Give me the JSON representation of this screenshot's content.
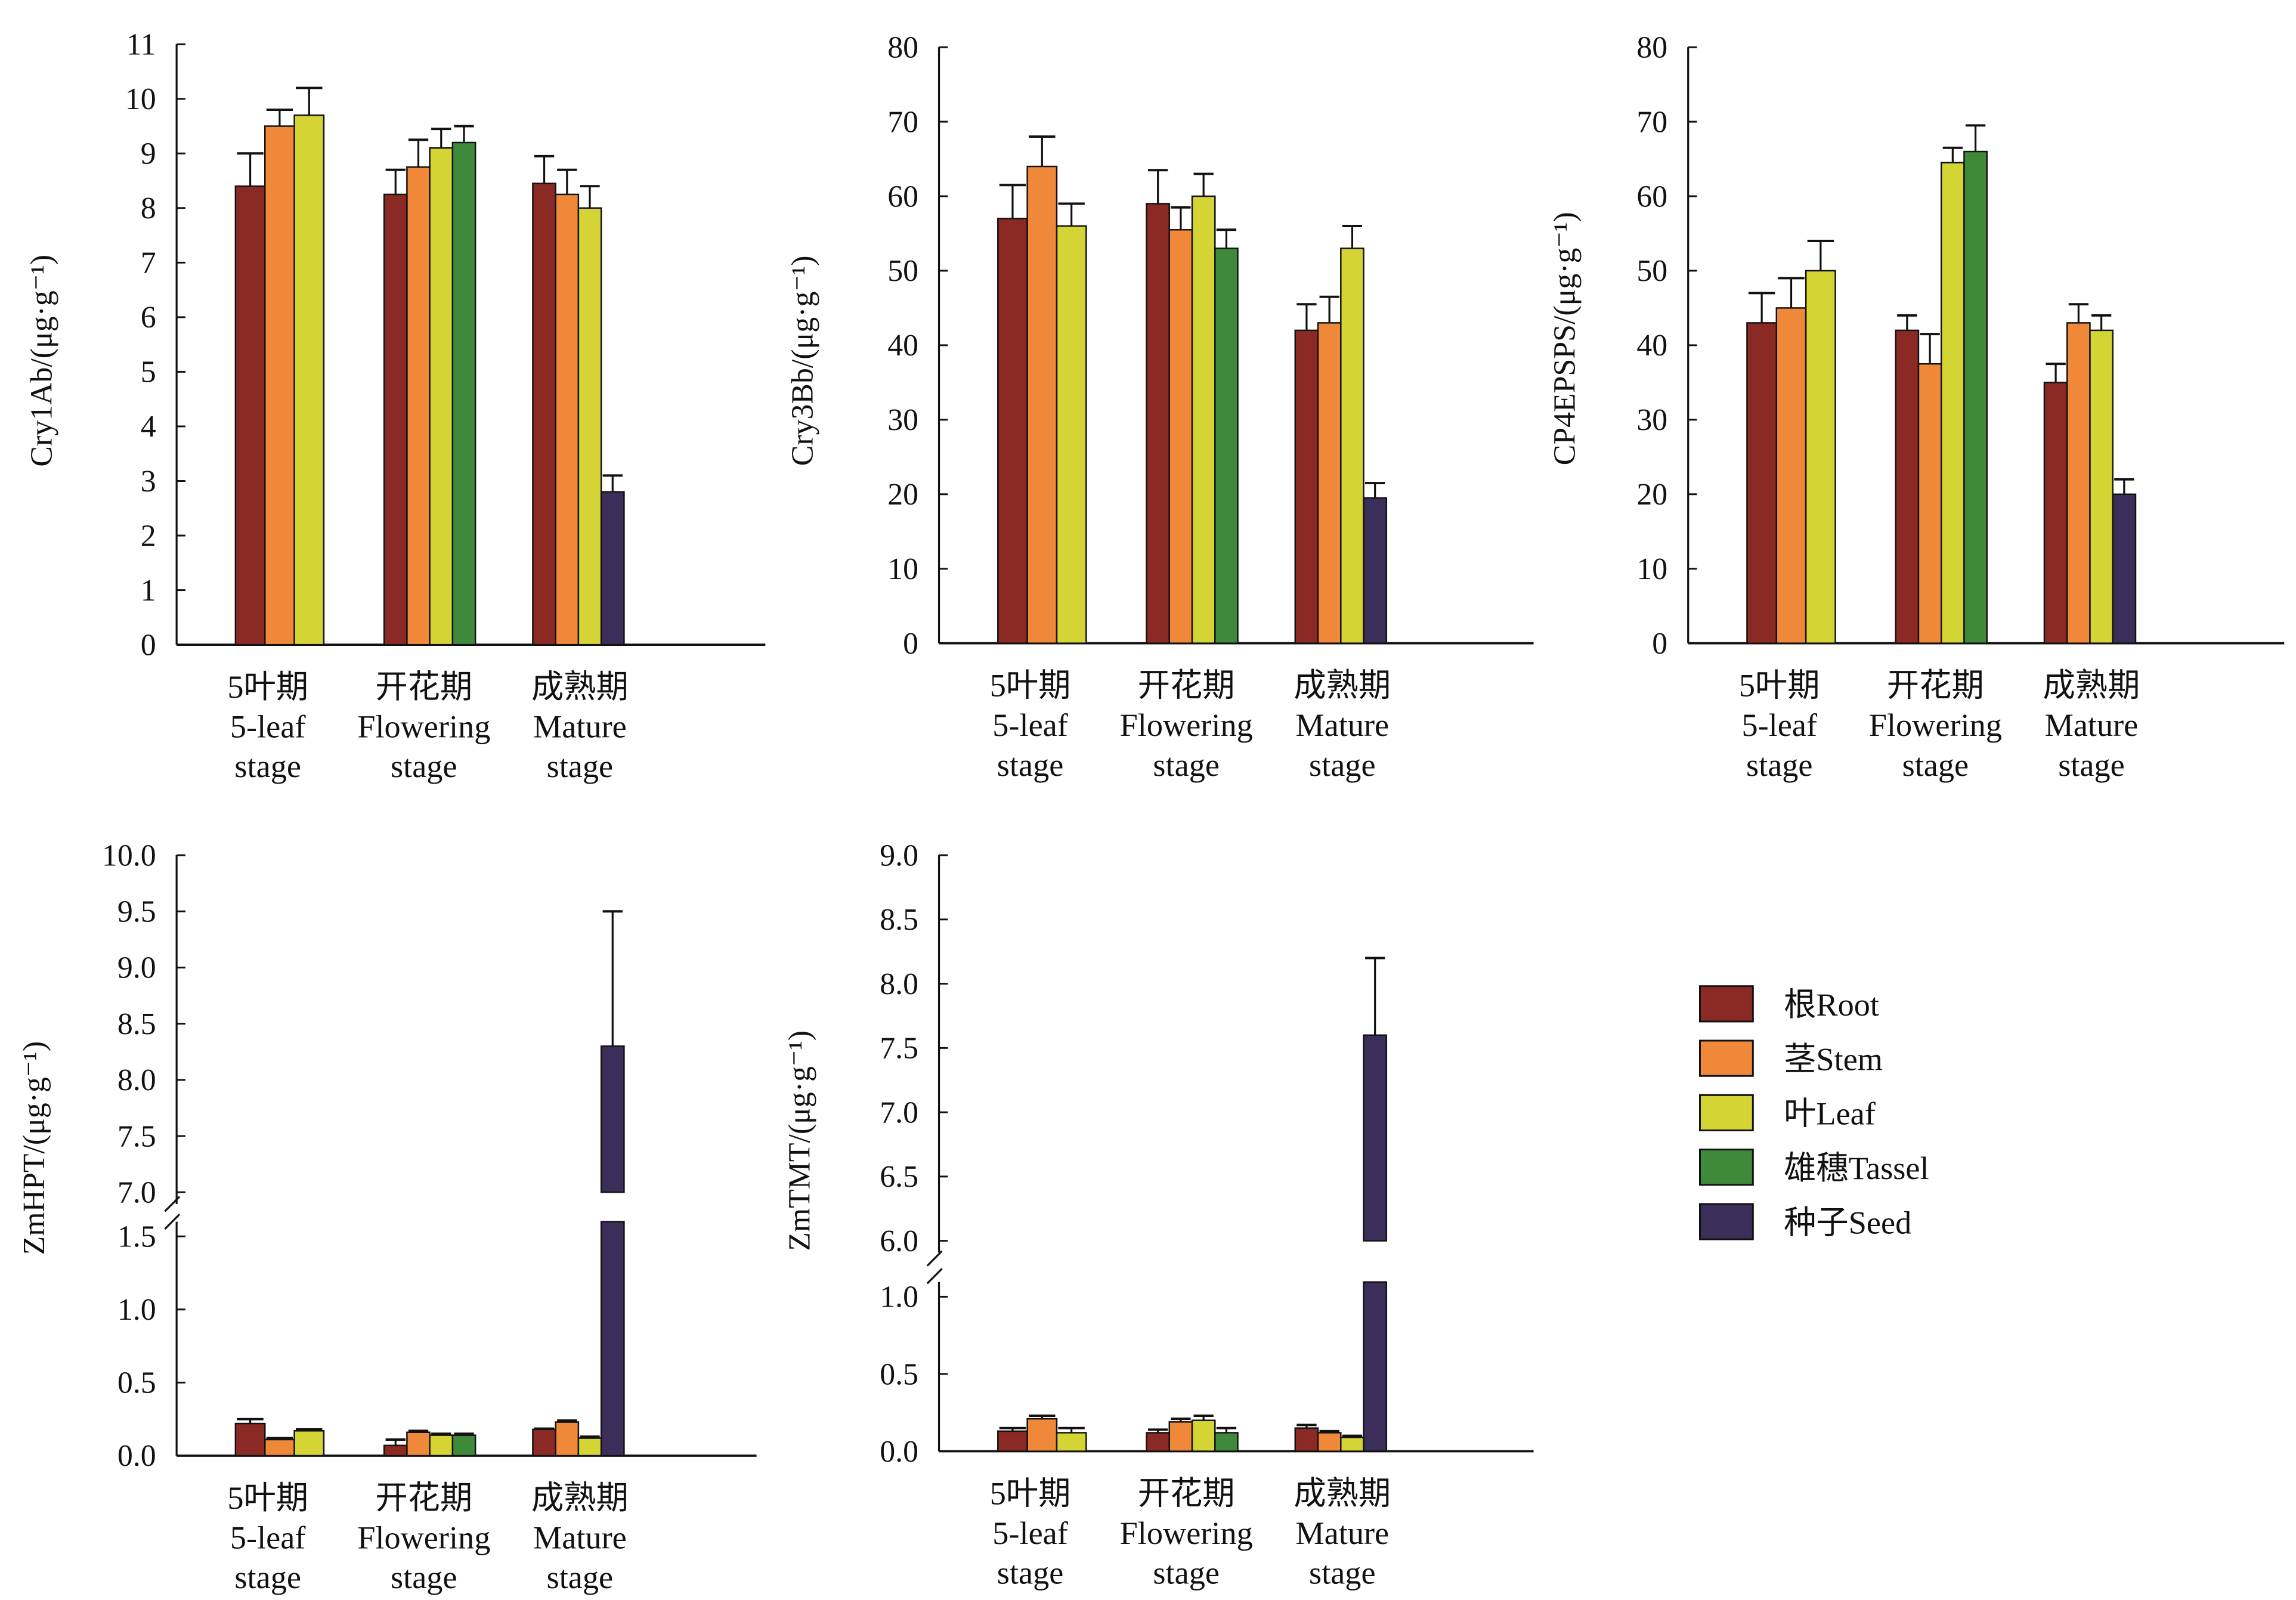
{
  "legend": [
    {
      "label": "根Root",
      "color": "#8B2A24"
    },
    {
      "label": "茎Stem",
      "color": "#F0883A"
    },
    {
      "label": "叶Leaf",
      "color": "#D4D435"
    },
    {
      "label": "雄穗Tassel",
      "color": "#3E8A3A"
    },
    {
      "label": "种子Seed",
      "color": "#3C2E5A"
    }
  ],
  "chart_data": [
    {
      "type": "bar",
      "ylabel": "Cry1Ab/(μg·g⁻¹)",
      "ylim": [
        0,
        11
      ],
      "yticks": [
        0,
        1,
        2,
        3,
        4,
        5,
        6,
        7,
        8,
        9,
        10,
        11
      ],
      "categories": [
        [
          "5叶期",
          "5-leaf",
          "stage"
        ],
        [
          "开花期",
          "Flowering",
          "stage"
        ],
        [
          "成熟期",
          "Mature",
          "stage"
        ]
      ],
      "groups": [
        [
          [
            "Root",
            8.4,
            0.6
          ],
          [
            "Stem",
            9.5,
            0.3
          ],
          [
            "Leaf",
            9.7,
            0.5
          ]
        ],
        [
          [
            "Root",
            8.25,
            0.45
          ],
          [
            "Stem",
            8.75,
            0.5
          ],
          [
            "Leaf",
            9.1,
            0.35
          ],
          [
            "Tassel",
            9.2,
            0.3
          ]
        ],
        [
          [
            "Root",
            8.45,
            0.5
          ],
          [
            "Stem",
            8.25,
            0.45
          ],
          [
            "Leaf",
            8.0,
            0.4
          ],
          [
            "Seed",
            2.8,
            0.3
          ]
        ]
      ]
    },
    {
      "type": "bar",
      "ylabel": "Cry3Bb/(μg·g⁻¹)",
      "ylim": [
        0,
        80
      ],
      "yticks": [
        0,
        10,
        20,
        30,
        40,
        50,
        60,
        70,
        80
      ],
      "categories": [
        [
          "5叶期",
          "5-leaf",
          "stage"
        ],
        [
          "开花期",
          "Flowering",
          "stage"
        ],
        [
          "成熟期",
          "Mature",
          "stage"
        ]
      ],
      "groups": [
        [
          [
            "Root",
            57,
            4.5
          ],
          [
            "Stem",
            64,
            4
          ],
          [
            "Leaf",
            56,
            3
          ]
        ],
        [
          [
            "Root",
            59,
            4.5
          ],
          [
            "Stem",
            55.5,
            3
          ],
          [
            "Leaf",
            60,
            3
          ],
          [
            "Tassel",
            53,
            2.5
          ]
        ],
        [
          [
            "Root",
            42,
            3.5
          ],
          [
            "Stem",
            43,
            3.5
          ],
          [
            "Leaf",
            53,
            3
          ],
          [
            "Seed",
            19.5,
            2
          ]
        ]
      ]
    },
    {
      "type": "bar",
      "ylabel": "CP4EPSPS/(μg·g⁻¹)",
      "ylim": [
        0,
        80
      ],
      "yticks": [
        0,
        10,
        20,
        30,
        40,
        50,
        60,
        70,
        80
      ],
      "categories": [
        [
          "5叶期",
          "5-leaf",
          "stage"
        ],
        [
          "开花期",
          "Flowering",
          "stage"
        ],
        [
          "成熟期",
          "Mature",
          "stage"
        ]
      ],
      "groups": [
        [
          [
            "Root",
            43,
            4
          ],
          [
            "Stem",
            45,
            4
          ],
          [
            "Leaf",
            50,
            4
          ]
        ],
        [
          [
            "Root",
            42,
            2
          ],
          [
            "Stem",
            37.5,
            4
          ],
          [
            "Leaf",
            64.5,
            2
          ],
          [
            "Tassel",
            66,
            3.5
          ]
        ],
        [
          [
            "Root",
            35,
            2.5
          ],
          [
            "Stem",
            43,
            2.5
          ],
          [
            "Leaf",
            42,
            2
          ],
          [
            "Seed",
            20,
            2
          ]
        ]
      ]
    },
    {
      "type": "bar",
      "ylabel": "ZmHPT/(μg·g⁻¹)",
      "broken_axis": {
        "lower": [
          0,
          1.5
        ],
        "upper": [
          7.0,
          10.0
        ]
      },
      "yticks_lower": [
        "0.0",
        "0.5",
        "1.0",
        "1.5"
      ],
      "yticks_upper": [
        "7.0",
        "7.5",
        "8.0",
        "8.5",
        "9.0",
        "9.5",
        "10.0"
      ],
      "categories": [
        [
          "5叶期",
          "5-leaf",
          "stage"
        ],
        [
          "开花期",
          "Flowering",
          "stage"
        ],
        [
          "成熟期",
          "Mature",
          "stage"
        ]
      ],
      "groups": [
        [
          [
            "Root",
            0.22,
            0.03
          ],
          [
            "Stem",
            0.11,
            0.01
          ],
          [
            "Leaf",
            0.17,
            0.01
          ]
        ],
        [
          [
            "Root",
            0.07,
            0.04
          ],
          [
            "Stem",
            0.16,
            0.01
          ],
          [
            "Leaf",
            0.14,
            0.01
          ],
          [
            "Tassel",
            0.14,
            0.01
          ]
        ],
        [
          [
            "Root",
            0.18,
            0.005
          ],
          [
            "Stem",
            0.23,
            0.01
          ],
          [
            "Leaf",
            0.12,
            0.01
          ],
          [
            "Seed",
            8.3,
            1.2
          ]
        ]
      ]
    },
    {
      "type": "bar",
      "ylabel": "ZmTMT/(μg·g⁻¹)",
      "broken_axis": {
        "lower": [
          0,
          1.0
        ],
        "upper": [
          6.0,
          9.0
        ]
      },
      "yticks_lower": [
        "0.0",
        "0.5",
        "1.0"
      ],
      "yticks_upper": [
        "6.0",
        "6.5",
        "7.0",
        "7.5",
        "8.0",
        "8.5",
        "9.0"
      ],
      "categories": [
        [
          "5叶期",
          "5-leaf",
          "stage"
        ],
        [
          "开花期",
          "Flowering",
          "stage"
        ],
        [
          "成熟期",
          "Mature",
          "stage"
        ]
      ],
      "groups": [
        [
          [
            "Root",
            0.13,
            0.02
          ],
          [
            "Stem",
            0.21,
            0.02
          ],
          [
            "Leaf",
            0.12,
            0.03
          ]
        ],
        [
          [
            "Root",
            0.12,
            0.02
          ],
          [
            "Stem",
            0.19,
            0.02
          ],
          [
            "Leaf",
            0.2,
            0.03
          ],
          [
            "Tassel",
            0.12,
            0.03
          ]
        ],
        [
          [
            "Root",
            0.15,
            0.02
          ],
          [
            "Stem",
            0.12,
            0.01
          ],
          [
            "Leaf",
            0.09,
            0.01
          ],
          [
            "Seed",
            7.6,
            0.6
          ]
        ]
      ]
    }
  ]
}
